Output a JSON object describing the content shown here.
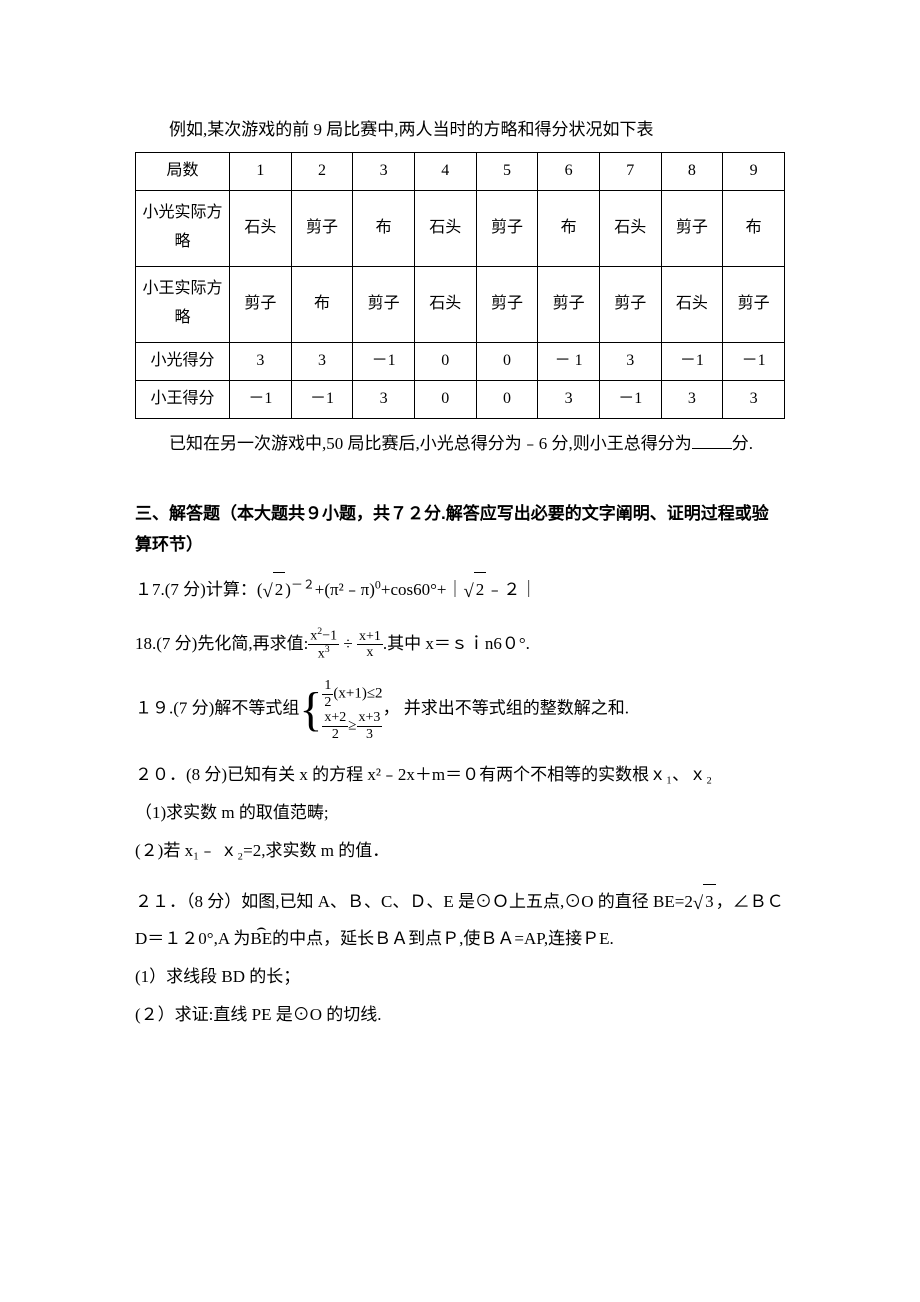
{
  "intro": {
    "text": "例如,某次游戏的前 9 局比赛中,两人当时的方略和得分状况如下表"
  },
  "table": {
    "headers": [
      "局数",
      "1",
      "2",
      "3",
      "4",
      "5",
      "6",
      "7",
      "8",
      "9"
    ],
    "rows": [
      {
        "label": "小光实际方略",
        "cells": [
          "石头",
          "剪子",
          "布",
          "石头",
          "剪子",
          "布",
          "石头",
          "剪子",
          "布"
        ],
        "tall": true
      },
      {
        "label": "小王实际方略",
        "cells": [
          "剪子",
          "布",
          "剪子",
          "石头",
          "剪子",
          "剪子",
          "剪子",
          "石头",
          "剪子"
        ],
        "tall": true
      },
      {
        "label": "小光得分",
        "cells": [
          "3",
          "3",
          "－1",
          "0",
          "0",
          "－ 1",
          "3",
          "－1",
          "－1"
        ],
        "tall": false
      },
      {
        "label": "小王得分",
        "cells": [
          "－1",
          "－1",
          "3",
          "0",
          "0",
          "3",
          "－1",
          "3",
          "3"
        ],
        "tall": false
      }
    ],
    "border_color": "#000000",
    "background": "#ffffff",
    "font_size": 16
  },
  "post_table": {
    "text_before": "已知在另一次游戏中,50 局比赛后,小光总得分为﹣6 分,则小王总得分为",
    "text_after": "分."
  },
  "section": {
    "title": "三、解答题（本大题共９小题，共７２分.解答应写出必要的文字阐明、证明过程或验算环节）"
  },
  "p17": {
    "prefix": "１7.(7 分)计算："
  },
  "p18": {
    "prefix": "18.(7 分)先化简,再求值:",
    "mid": ".其中 x＝ｓｉn6０°."
  },
  "p19": {
    "prefix": "１９.(7 分)解不等式组",
    "suffix": "， 并求出不等式组的整数解之和."
  },
  "p20": {
    "line1": "２０．(8 分)已知有关 x 的方程 x²﹣2x＋m＝０有两个不相等的实数根ｘ₁、ｘ₂",
    "sub1": "（1)求实数 m 的取值范畴;",
    "sub2": "(２)若 x₁﹣ ｘ₂=2,求实数 m 的值．"
  },
  "p21": {
    "part1_before": "２１．（8 分）如图,已知 A、Ｂ、C、Ｄ、E 是⊙Ｏ上五点,⊙O 的直径 BE=2",
    "part1_after": "，∠ＢＣD＝１２0°,A 为",
    "be": "BE",
    "part1_end": "的中点，延长ＢＡ到点Ｐ,使ＢＡ=AP,连接ＰE.",
    "sub1": "(1）求线段 BD 的长；",
    "sub2": "(２）求证:直线 PE 是⊙O 的切线."
  },
  "style": {
    "page_bg": "#ffffff",
    "text_color": "#000000",
    "body_font_size": 17
  }
}
